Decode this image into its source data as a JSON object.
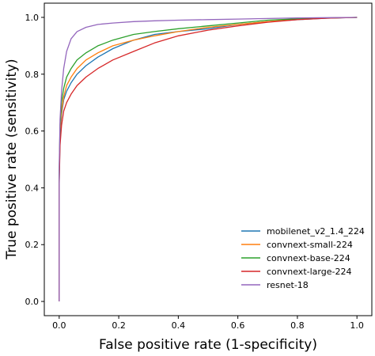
{
  "chart_data": {
    "type": "line",
    "xlabel": "False positive rate (1-specificity)",
    "ylabel": "True positive rate (sensitivity)",
    "xlim": [
      -0.05,
      1.05
    ],
    "ylim": [
      -0.05,
      1.05
    ],
    "xticks": [
      "0.0",
      "0.2",
      "0.4",
      "0.6",
      "0.8",
      "1.0"
    ],
    "yticks": [
      "0.0",
      "0.2",
      "0.4",
      "0.6",
      "0.8",
      "1.0"
    ],
    "grid": false,
    "legend_position": "lower-right",
    "series": [
      {
        "name": "mobilenet_v2_1.4_224",
        "color": "#1f77b4",
        "x": [
          0.0,
          0.0,
          0.003,
          0.008,
          0.015,
          0.025,
          0.04,
          0.06,
          0.09,
          0.13,
          0.18,
          0.25,
          0.32,
          0.4,
          0.5,
          0.6,
          0.7,
          0.8,
          0.9,
          1.0
        ],
        "y": [
          0.0,
          0.42,
          0.58,
          0.66,
          0.71,
          0.74,
          0.77,
          0.8,
          0.83,
          0.86,
          0.89,
          0.92,
          0.94,
          0.95,
          0.96,
          0.975,
          0.985,
          0.992,
          0.997,
          1.0
        ]
      },
      {
        "name": "convnext-small-224",
        "color": "#ff7f0e",
        "x": [
          0.0,
          0.0,
          0.003,
          0.008,
          0.015,
          0.025,
          0.04,
          0.06,
          0.09,
          0.13,
          0.18,
          0.25,
          0.32,
          0.4,
          0.5,
          0.6,
          0.7,
          0.8,
          0.9,
          1.0
        ],
        "y": [
          0.0,
          0.44,
          0.6,
          0.67,
          0.72,
          0.76,
          0.79,
          0.82,
          0.85,
          0.875,
          0.9,
          0.92,
          0.935,
          0.95,
          0.965,
          0.975,
          0.985,
          0.993,
          0.998,
          1.0
        ]
      },
      {
        "name": "convnext-base-224",
        "color": "#2ca02c",
        "x": [
          0.0,
          0.0,
          0.003,
          0.008,
          0.015,
          0.025,
          0.04,
          0.06,
          0.09,
          0.13,
          0.18,
          0.25,
          0.32,
          0.4,
          0.5,
          0.6,
          0.7,
          0.8,
          0.9,
          1.0
        ],
        "y": [
          0.0,
          0.45,
          0.62,
          0.7,
          0.75,
          0.79,
          0.82,
          0.85,
          0.875,
          0.9,
          0.92,
          0.94,
          0.95,
          0.96,
          0.97,
          0.98,
          0.99,
          0.995,
          0.998,
          1.0
        ]
      },
      {
        "name": "convnext-large-224",
        "color": "#d62728",
        "x": [
          0.0,
          0.0,
          0.003,
          0.008,
          0.015,
          0.025,
          0.04,
          0.06,
          0.09,
          0.13,
          0.18,
          0.25,
          0.32,
          0.4,
          0.5,
          0.6,
          0.7,
          0.8,
          0.9,
          1.0
        ],
        "y": [
          0.0,
          0.41,
          0.55,
          0.62,
          0.67,
          0.7,
          0.73,
          0.76,
          0.79,
          0.82,
          0.85,
          0.88,
          0.91,
          0.935,
          0.955,
          0.97,
          0.983,
          0.992,
          0.997,
          1.0
        ]
      },
      {
        "name": "resnet-18",
        "color": "#9467bd",
        "x": [
          0.0,
          0.0,
          0.003,
          0.008,
          0.015,
          0.025,
          0.04,
          0.06,
          0.09,
          0.13,
          0.18,
          0.25,
          0.32,
          0.4,
          0.5,
          0.6,
          0.7,
          0.8,
          0.9,
          1.0
        ],
        "y": [
          0.0,
          0.47,
          0.64,
          0.74,
          0.82,
          0.88,
          0.925,
          0.95,
          0.965,
          0.975,
          0.98,
          0.985,
          0.988,
          0.99,
          0.992,
          0.994,
          0.996,
          0.998,
          0.999,
          1.0
        ]
      }
    ]
  }
}
